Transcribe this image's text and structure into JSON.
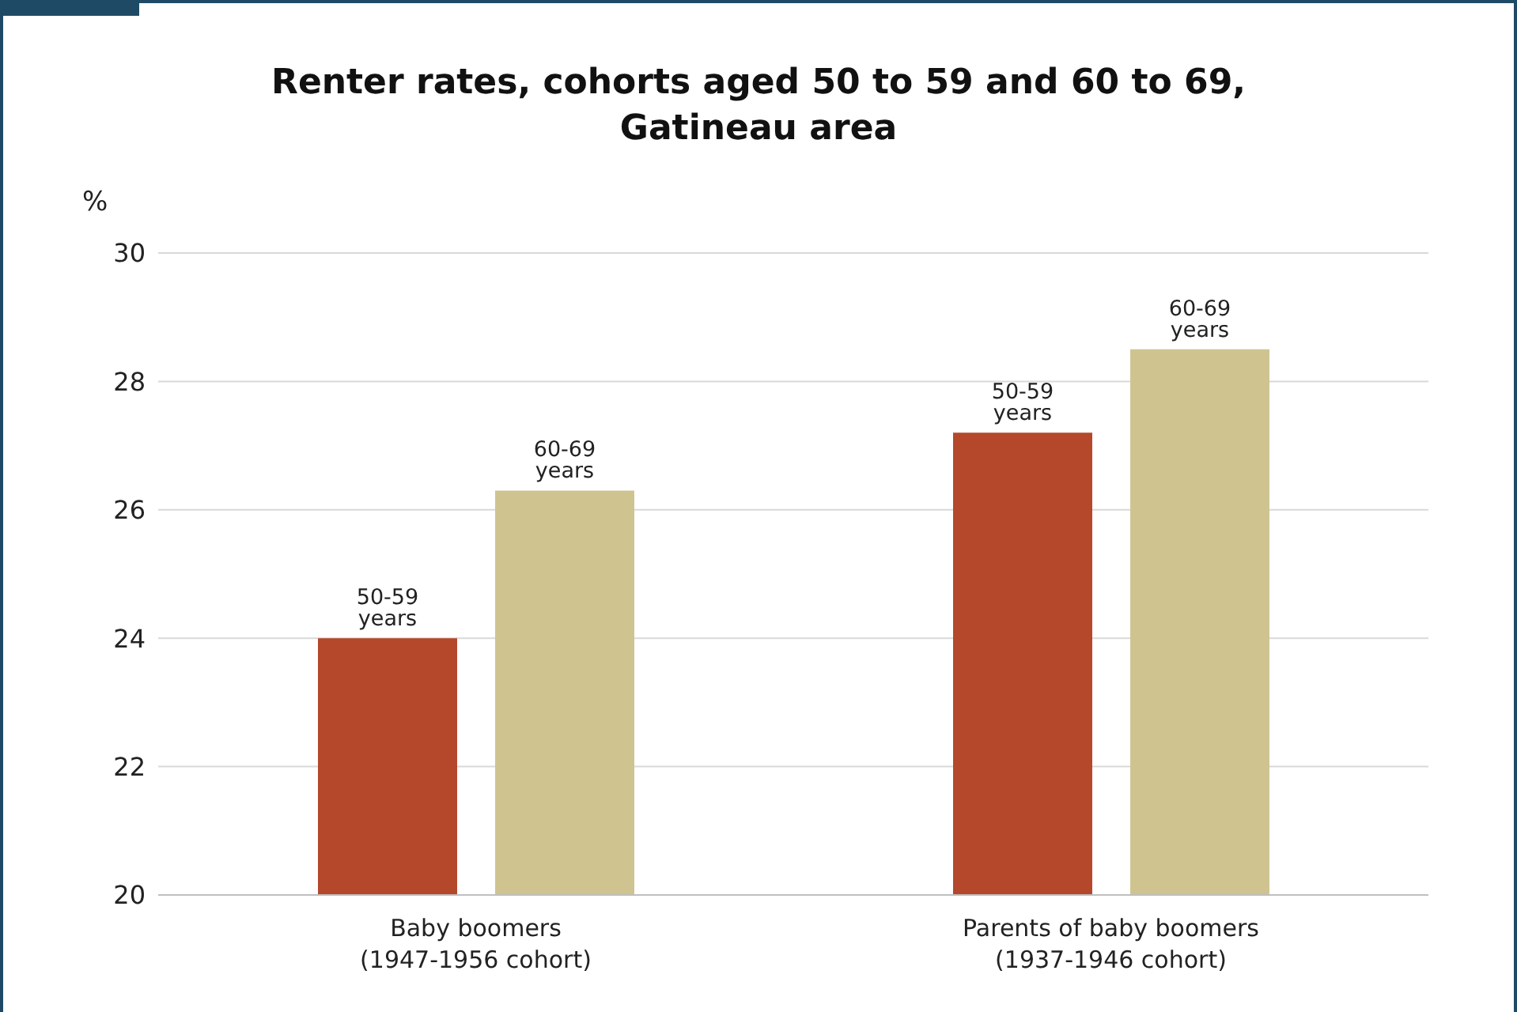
{
  "chart_data": {
    "type": "bar",
    "title": "Renter rates, cohorts aged 50 to 59 and 60 to 69,\nGatineau area",
    "ylabel": "%",
    "categories": [
      "Baby boomers\n(1947-1956 cohort)",
      "Parents of baby boomers\n(1937-1946 cohort)"
    ],
    "series": [
      {
        "name": "50-59 years",
        "color": "#b5482a",
        "values": [
          24.0,
          27.2
        ]
      },
      {
        "name": "60-69 years",
        "color": "#cfc490",
        "values": [
          26.3,
          28.5
        ]
      }
    ],
    "ylim": [
      20,
      30
    ],
    "yticks": [
      20,
      22,
      24,
      26,
      28,
      30
    ],
    "grid": "y",
    "legend": false
  }
}
